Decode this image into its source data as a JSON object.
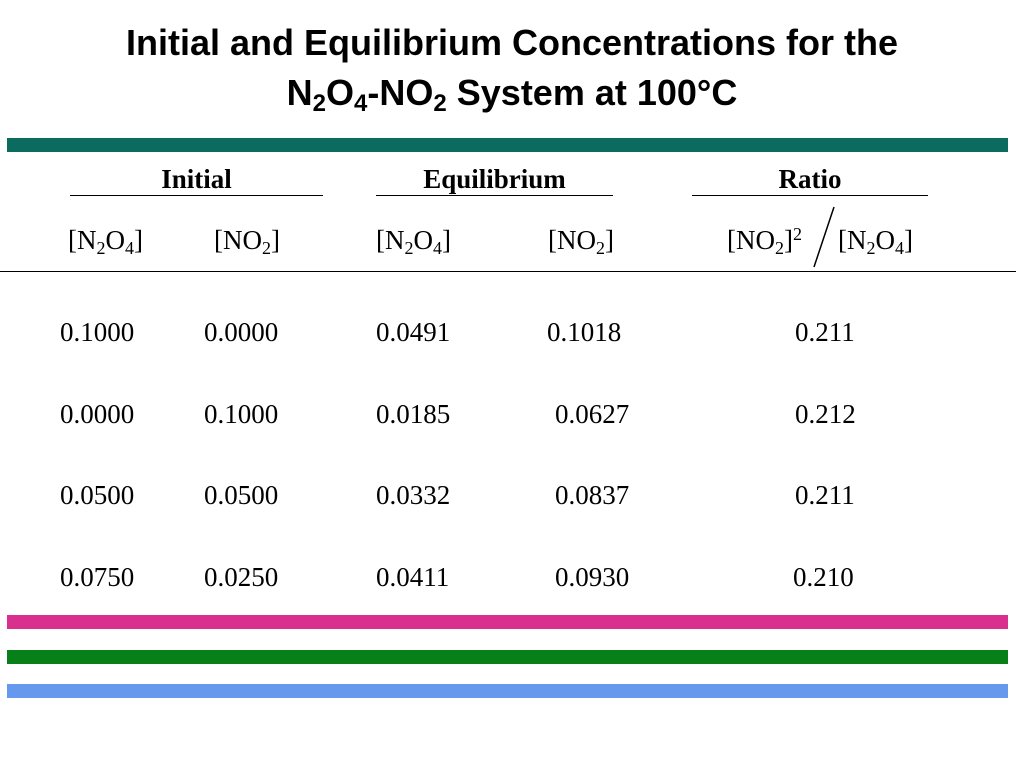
{
  "title": {
    "line1": "Initial and Equilibrium Concentrations for the",
    "l2_a": "N",
    "l2_sub1": "2",
    "l2_b": "O",
    "l2_sub2": "4",
    "l2_c": "-NO",
    "l2_sub3": "2",
    "l2_d": " System at 100°C"
  },
  "colors": {
    "teal": "#0a6b5e",
    "magenta": "#d9308f",
    "green": "#07801a",
    "blue": "#6699ee"
  },
  "groups": {
    "initial": "Initial",
    "equilibrium": "Equilibrium",
    "ratio": "Ratio"
  },
  "headers": {
    "n2o4_a": "[N",
    "n2o4_sub1": "2",
    "n2o4_b": "O",
    "n2o4_sub2": "4",
    "n2o4_c": "]",
    "no2_a": "[NO",
    "no2_sub": "2",
    "no2_b": "]",
    "ratio_num_a": "[NO",
    "ratio_num_sub": "2",
    "ratio_num_b": "]",
    "ratio_num_sup": "2",
    "ratio_den_a": "[N",
    "ratio_den_sub1": "2",
    "ratio_den_b": "O",
    "ratio_den_sub2": "4",
    "ratio_den_c": "]"
  },
  "rows": [
    [
      "0.1000",
      "0.0000",
      "0.0491",
      "0.1018",
      "0.211"
    ],
    [
      "0.0000",
      "0.1000",
      "0.0185",
      "0.0627",
      "0.212"
    ],
    [
      "0.0500",
      "0.0500",
      "0.0332",
      "0.0837",
      "0.211"
    ],
    [
      "0.0750",
      "0.0250",
      "0.0411",
      "0.0930",
      "0.210"
    ]
  ]
}
